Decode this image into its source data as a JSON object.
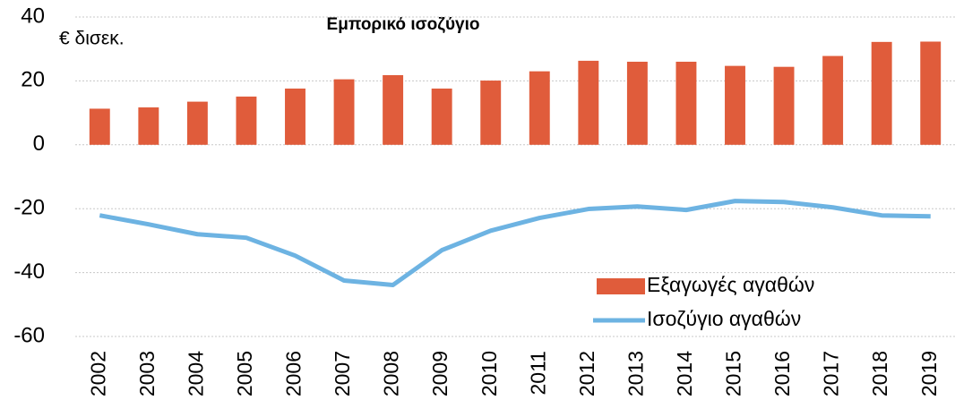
{
  "chart_data": {
    "type": "bar_line",
    "title": "Εμπορικό ισοζύγιο",
    "y_label": "€ δισεκ.",
    "categories": [
      "2002",
      "2003",
      "2004",
      "2005",
      "2006",
      "2007",
      "2008",
      "2009",
      "2010",
      "2011",
      "2012",
      "2013",
      "2014",
      "2015",
      "2016",
      "2017",
      "2018",
      "2019"
    ],
    "series": [
      {
        "name": "Εξαγωγές αγαθών",
        "type": "bar",
        "color": "#e05c3b",
        "values": [
          11.3,
          11.7,
          13.5,
          15.1,
          17.6,
          20.5,
          21.8,
          17.6,
          20.1,
          23.0,
          26.3,
          26.0,
          26.0,
          24.7,
          24.4,
          27.8,
          32.2,
          32.3
        ]
      },
      {
        "name": "Ισοζύγιο αγαθών",
        "type": "line",
        "color": "#6db3e2",
        "values": [
          -22.1,
          -24.9,
          -28.0,
          -29.1,
          -34.7,
          -42.5,
          -43.9,
          -33.0,
          -26.9,
          -22.9,
          -20.1,
          -19.3,
          -20.4,
          -17.6,
          -17.9,
          -19.6,
          -22.1,
          -22.4
        ]
      }
    ],
    "ylim": [
      -60,
      40
    ],
    "yticks": [
      -60,
      -40,
      -20,
      0,
      20,
      40
    ],
    "grid": true,
    "legend": "bottom-right"
  }
}
